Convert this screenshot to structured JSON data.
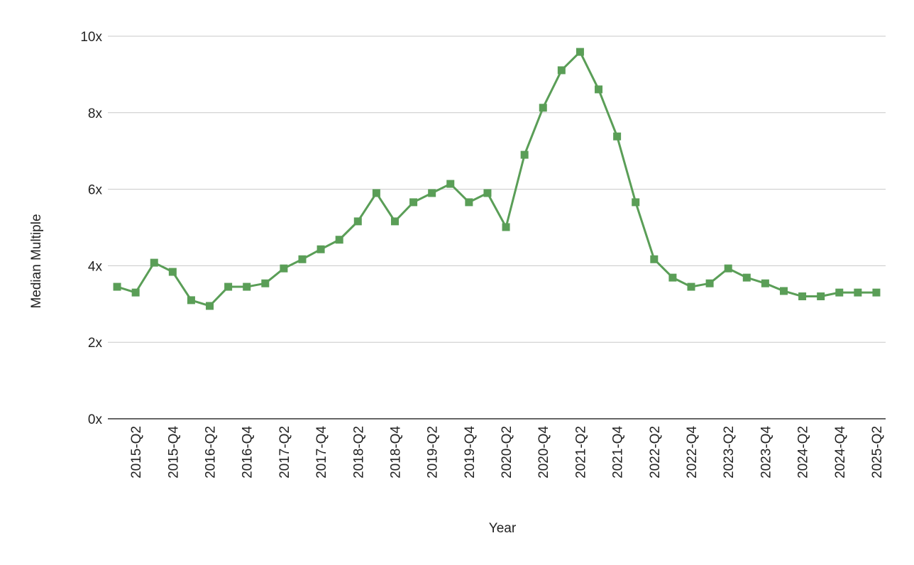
{
  "chart_data": {
    "type": "line",
    "x_label": "Year",
    "y_label": "Median Multiple",
    "categories": [
      null,
      "2015-Q2",
      null,
      "2015-Q4",
      null,
      "2016-Q2",
      null,
      "2016-Q4",
      null,
      "2017-Q2",
      null,
      "2017-Q4",
      null,
      "2018-Q2",
      null,
      "2018-Q4",
      null,
      "2019-Q2",
      null,
      "2019-Q4",
      null,
      "2020-Q2",
      null,
      "2020-Q4",
      null,
      "2021-Q2",
      null,
      "2021-Q4",
      null,
      "2022-Q2",
      null,
      "2022-Q4",
      null,
      "2023-Q2",
      null,
      "2023-Q4",
      null,
      "2024-Q2",
      null,
      "2024-Q4",
      null,
      "2025-Q2"
    ],
    "values": [
      3.45,
      3.3,
      4.08,
      3.84,
      3.1,
      2.95,
      3.45,
      3.45,
      3.54,
      3.93,
      4.17,
      4.43,
      4.68,
      5.16,
      5.9,
      5.16,
      5.66,
      5.9,
      6.14,
      5.66,
      5.9,
      5.01,
      6.9,
      8.13,
      9.11,
      9.59,
      8.61,
      7.38,
      5.66,
      4.17,
      3.69,
      3.45,
      3.54,
      3.93,
      3.69,
      3.54,
      3.34,
      3.2,
      3.2,
      3.3,
      3.3,
      3.3
    ],
    "color": "#5a9e57",
    "ylim": [
      0,
      10
    ],
    "yticks": [
      {
        "value": 0,
        "label": "0x"
      },
      {
        "value": 2,
        "label": "2x"
      },
      {
        "value": 4,
        "label": "4x"
      },
      {
        "value": 6,
        "label": "6x"
      },
      {
        "value": 8,
        "label": "8x"
      },
      {
        "value": 10,
        "label": "10x"
      }
    ],
    "grid": true
  }
}
